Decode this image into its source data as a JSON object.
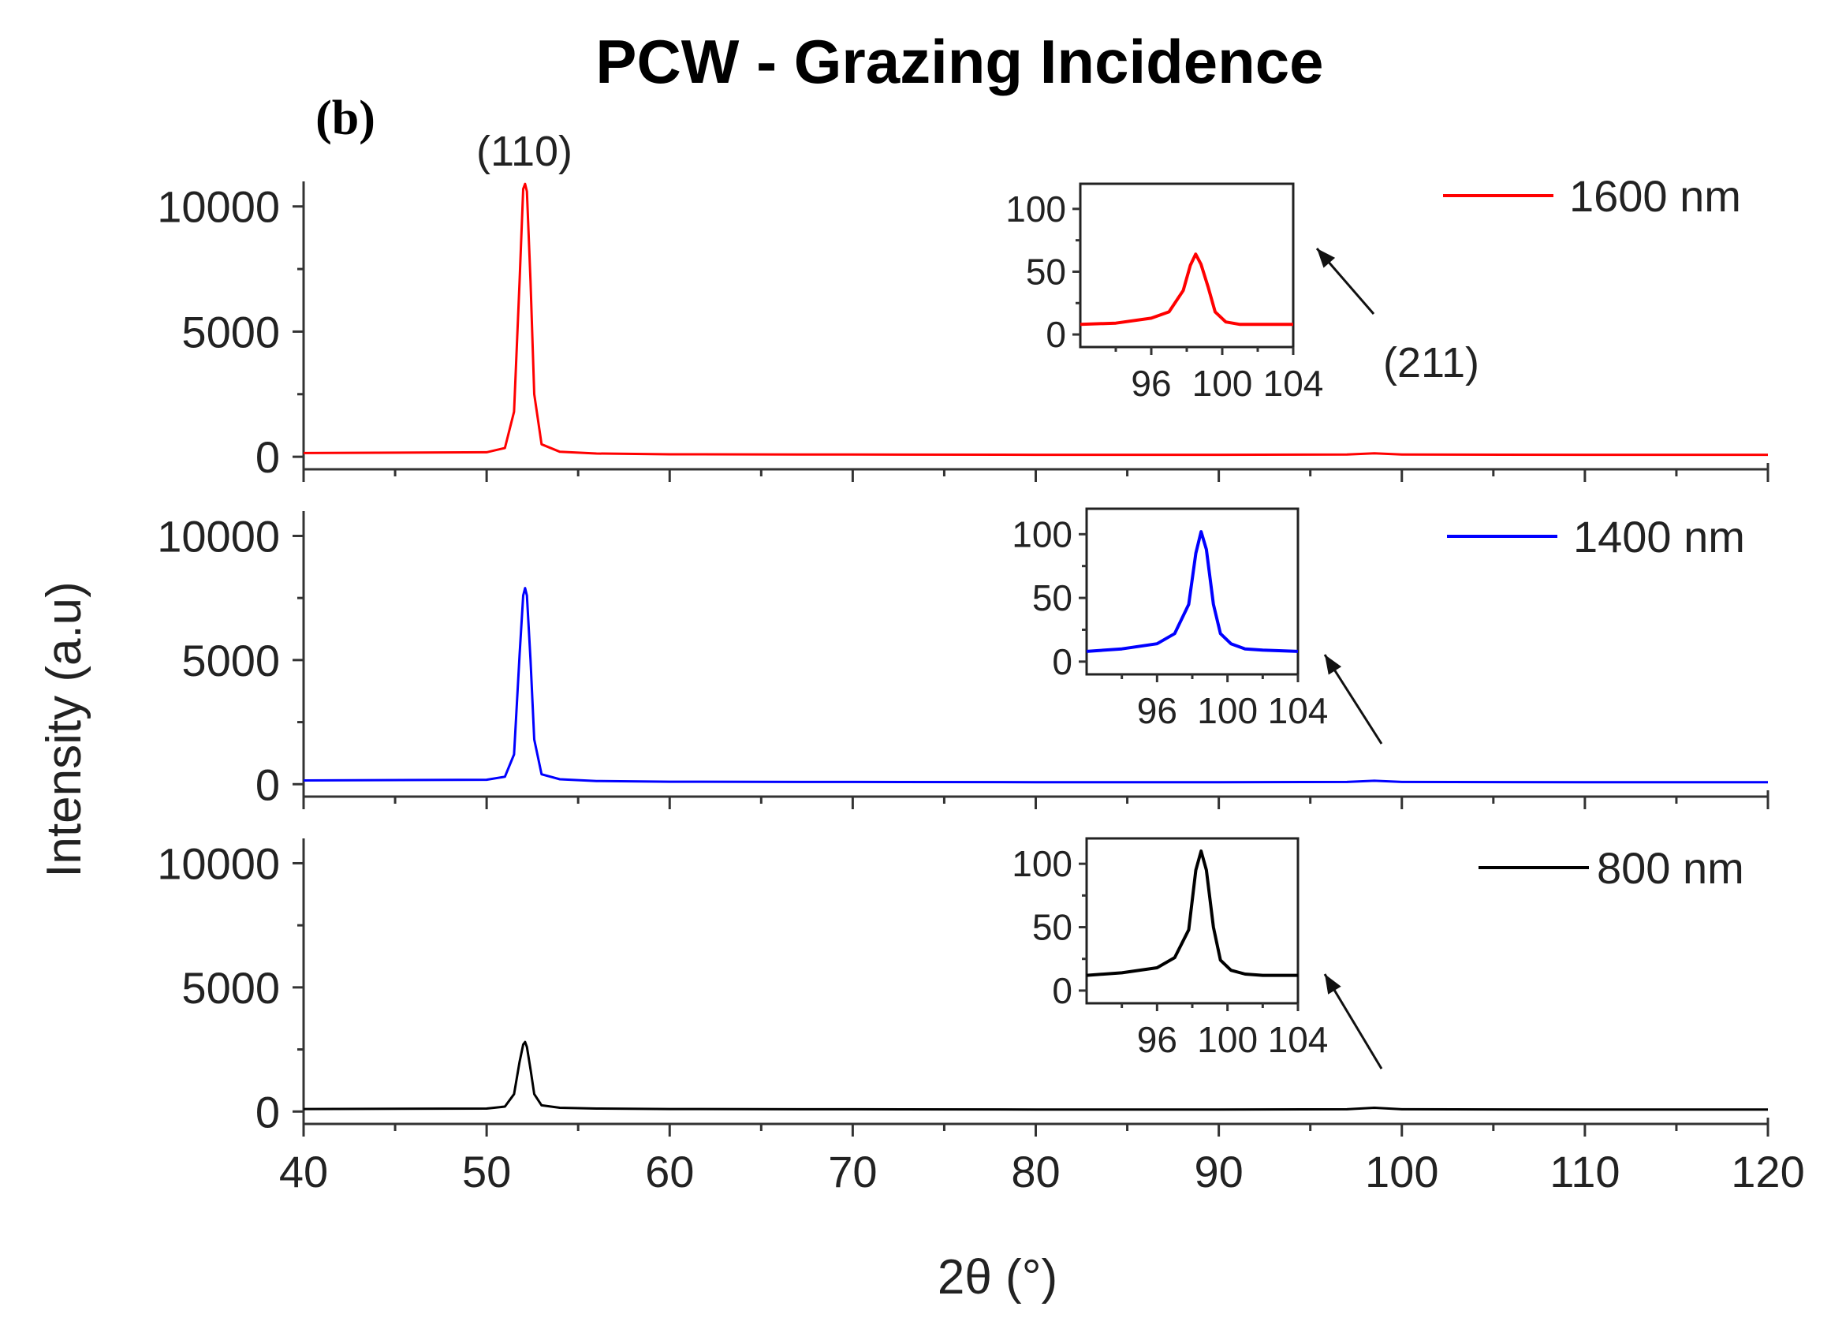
{
  "panel_label": "(b)",
  "chart_data": {
    "type": "line",
    "title": "PCW - Grazing Incidence",
    "xlabel": "2θ (°)",
    "ylabel": "Intensity (a.u)",
    "xlim": [
      40,
      120
    ],
    "xticks": [
      40,
      50,
      60,
      70,
      80,
      90,
      100,
      110,
      120
    ],
    "xtick_labels": [
      "40",
      "50",
      "60",
      "70",
      "80",
      "90",
      "100",
      "110",
      "120"
    ],
    "ylim": [
      -500,
      11000
    ],
    "yticks": [
      0,
      5000,
      10000
    ],
    "ytick_labels": [
      "0",
      "5000",
      "10000"
    ],
    "grid": false,
    "annotations": [
      "(110)",
      "(211)"
    ],
    "series": [
      {
        "name": "1600 nm",
        "color": "#ff0000",
        "x": [
          40,
          50,
          51,
          51.5,
          51.8,
          52,
          52.1,
          52.2,
          52.4,
          52.6,
          53,
          54,
          56,
          60,
          70,
          80,
          90,
          97,
          98.5,
          100,
          110,
          120
        ],
        "y": [
          150,
          180,
          350,
          1800,
          7000,
          10700,
          10900,
          10600,
          7000,
          2500,
          500,
          200,
          130,
          100,
          90,
          80,
          80,
          90,
          140,
          90,
          80,
          80
        ],
        "inset": {
          "xlim": [
            92,
            104
          ],
          "ylim": [
            -10,
            120
          ],
          "xticks": [
            96,
            100,
            104
          ],
          "yticks": [
            0,
            50,
            100
          ],
          "xtick_labels": [
            "96",
            "100",
            "104"
          ],
          "ytick_labels": [
            "0",
            "50",
            "100"
          ],
          "x": [
            92,
            94,
            96,
            97,
            97.8,
            98.2,
            98.5,
            98.8,
            99.2,
            99.6,
            100.2,
            101,
            102,
            104
          ],
          "y": [
            8,
            9,
            13,
            18,
            35,
            55,
            64,
            56,
            38,
            18,
            10,
            8,
            8,
            8
          ]
        }
      },
      {
        "name": "1400 nm",
        "color": "#0000ff",
        "x": [
          40,
          50,
          51,
          51.5,
          51.8,
          52,
          52.1,
          52.2,
          52.4,
          52.6,
          53,
          54,
          56,
          60,
          70,
          80,
          90,
          97,
          98.5,
          100,
          110,
          120
        ],
        "y": [
          150,
          180,
          300,
          1200,
          5200,
          7600,
          7900,
          7600,
          5000,
          1800,
          400,
          200,
          130,
          100,
          90,
          80,
          80,
          90,
          140,
          90,
          80,
          80
        ],
        "inset": {
          "xlim": [
            92,
            104
          ],
          "ylim": [
            -10,
            120
          ],
          "xticks": [
            96,
            100,
            104
          ],
          "yticks": [
            0,
            50,
            100
          ],
          "xtick_labels": [
            "96",
            "100",
            "104"
          ],
          "ytick_labels": [
            "0",
            "50",
            "100"
          ],
          "x": [
            92,
            94,
            96,
            97,
            97.8,
            98.2,
            98.5,
            98.8,
            99.2,
            99.6,
            100.2,
            101,
            102,
            104
          ],
          "y": [
            8,
            10,
            14,
            22,
            45,
            85,
            102,
            88,
            45,
            22,
            14,
            10,
            9,
            8
          ]
        }
      },
      {
        "name": "800 nm",
        "color": "#000000",
        "x": [
          40,
          50,
          51,
          51.5,
          51.8,
          52,
          52.1,
          52.2,
          52.4,
          52.6,
          53,
          54,
          56,
          60,
          70,
          80,
          90,
          97,
          98.5,
          100,
          110,
          120
        ],
        "y": [
          100,
          120,
          200,
          700,
          2000,
          2700,
          2800,
          2600,
          1700,
          700,
          250,
          150,
          120,
          100,
          90,
          80,
          80,
          90,
          150,
          90,
          80,
          80
        ],
        "inset": {
          "xlim": [
            92,
            104
          ],
          "ylim": [
            -10,
            120
          ],
          "xticks": [
            96,
            100,
            104
          ],
          "yticks": [
            0,
            50,
            100
          ],
          "xtick_labels": [
            "96",
            "100",
            "104"
          ],
          "ytick_labels": [
            "0",
            "50",
            "100"
          ],
          "x": [
            92,
            94,
            96,
            97,
            97.8,
            98.2,
            98.5,
            98.8,
            99.2,
            99.6,
            100.2,
            101,
            102,
            104
          ],
          "y": [
            12,
            14,
            18,
            26,
            48,
            95,
            110,
            95,
            50,
            24,
            16,
            13,
            12,
            12
          ]
        }
      }
    ]
  }
}
